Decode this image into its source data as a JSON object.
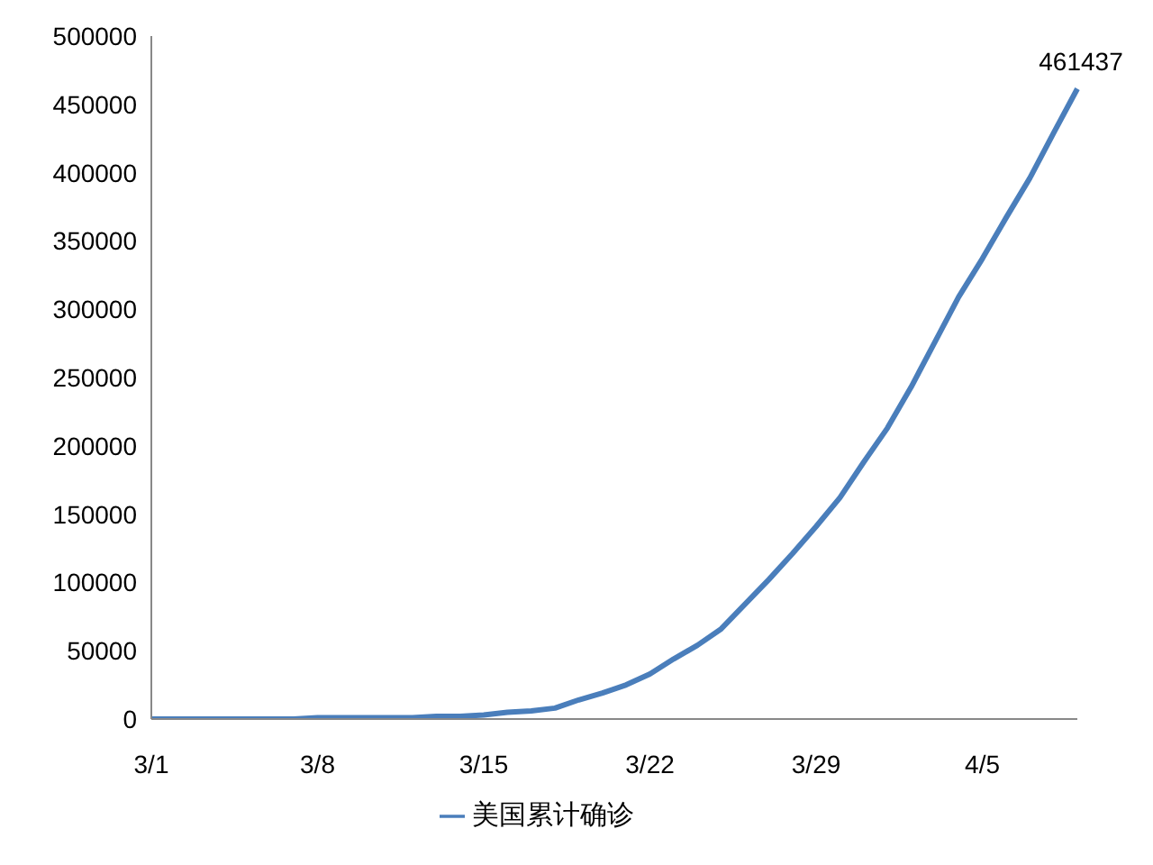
{
  "chart_data": {
    "type": "line",
    "categories": [
      "3/1",
      null,
      null,
      null,
      null,
      null,
      null,
      "3/8",
      null,
      null,
      null,
      null,
      null,
      null,
      "3/15",
      null,
      null,
      null,
      null,
      null,
      null,
      "3/22",
      null,
      null,
      null,
      null,
      null,
      null,
      "3/29",
      null,
      null,
      null,
      null,
      null,
      null,
      "4/5",
      null,
      null,
      null,
      null
    ],
    "series": [
      {
        "name": "美国累计确诊",
        "color": "#4a7ebb",
        "values": [
          0,
          0,
          0,
          0,
          0,
          0,
          0,
          1000,
          1000,
          1000,
          1000,
          1000,
          2000,
          2000,
          3000,
          5000,
          6000,
          8000,
          14000,
          19000,
          25000,
          33000,
          44000,
          54000,
          66000,
          84000,
          102000,
          121000,
          141000,
          162000,
          188000,
          213000,
          243000,
          276000,
          309000,
          337000,
          367000,
          396000,
          429000,
          461437
        ],
        "value_labels": [
          null,
          null,
          null,
          null,
          null,
          null,
          null,
          null,
          null,
          null,
          null,
          null,
          null,
          null,
          null,
          null,
          null,
          null,
          null,
          null,
          null,
          null,
          null,
          null,
          null,
          null,
          null,
          null,
          null,
          null,
          null,
          null,
          null,
          null,
          null,
          null,
          null,
          null,
          null,
          "461437"
        ]
      }
    ],
    "ylim": [
      0,
      500000
    ],
    "yticks": [
      0,
      50000,
      100000,
      150000,
      200000,
      250000,
      300000,
      350000,
      400000,
      450000,
      500000
    ],
    "grid": false,
    "legend": "bottom",
    "marker": "none",
    "line_style": "solid"
  }
}
